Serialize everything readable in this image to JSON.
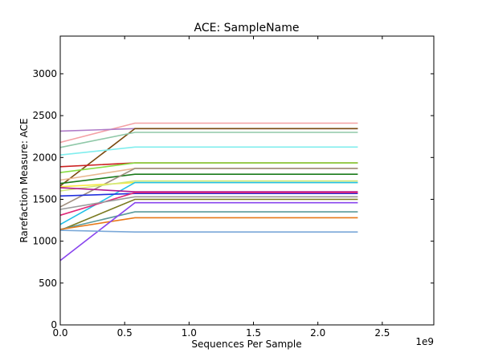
{
  "chart_data": {
    "type": "line",
    "title": "ACE: SampleName",
    "xlabel": "Sequences Per Sample",
    "ylabel": "Rarefaction Measure: ACE",
    "x_exponent_label": "1e9",
    "xlim": [
      0,
      2.9
    ],
    "ylim": [
      0,
      3450
    ],
    "x_ticks": [
      0,
      0.5,
      1.0,
      1.5,
      2.0,
      2.5
    ],
    "x_tick_labels": [
      "0.0",
      "0.5",
      "1.0",
      "1.5",
      "2.0",
      "2.5"
    ],
    "y_ticks": [
      0,
      500,
      1000,
      1500,
      2000,
      2500,
      3000
    ],
    "y_tick_labels": [
      "0",
      "500",
      "1000",
      "1500",
      "2000",
      "2500",
      "3000"
    ],
    "grid": false,
    "x": [
      0,
      0.58,
      2.31
    ],
    "series": [
      {
        "color": "#f4a0a4",
        "values": [
          2180,
          2410,
          2410
        ]
      },
      {
        "color": "#b07cc8",
        "values": [
          2315,
          2345,
          2345
        ]
      },
      {
        "color": "#7a4a10",
        "values": [
          1660,
          2345,
          2345
        ]
      },
      {
        "color": "#8fc8a8",
        "values": [
          2120,
          2300,
          2300
        ]
      },
      {
        "color": "#80eeee",
        "values": [
          2030,
          2125,
          2125
        ]
      },
      {
        "color": "#cc2020",
        "values": [
          1890,
          1935,
          1935
        ]
      },
      {
        "color": "#88dd44",
        "values": [
          1820,
          1935,
          1935
        ]
      },
      {
        "color": "#1a7a1a",
        "values": [
          1690,
          1800,
          1800
        ]
      },
      {
        "color": "#e8b890",
        "values": [
          1730,
          1870,
          1870
        ]
      },
      {
        "color": "#a09080",
        "values": [
          1410,
          1870,
          1870
        ]
      },
      {
        "color": "#f8e840",
        "values": [
          1650,
          1700,
          1700
        ]
      },
      {
        "color": "#d0e878",
        "values": [
          1600,
          1720,
          1720
        ]
      },
      {
        "color": "#22c0e8",
        "values": [
          1200,
          1700,
          1700
        ]
      },
      {
        "color": "#2030dd",
        "values": [
          1540,
          1570,
          1570
        ]
      },
      {
        "color": "#b01890",
        "values": [
          1640,
          1590,
          1590
        ]
      },
      {
        "color": "#e02878",
        "values": [
          1310,
          1580,
          1580
        ]
      },
      {
        "color": "#7a7a20",
        "values": [
          1130,
          1500,
          1500
        ]
      },
      {
        "color": "#9a9a9a",
        "values": [
          1380,
          1530,
          1530
        ]
      },
      {
        "color": "#5a9a9a",
        "values": [
          1140,
          1350,
          1350
        ]
      },
      {
        "color": "#e87818",
        "values": [
          1140,
          1280,
          1280
        ]
      },
      {
        "color": "#8844ee",
        "values": [
          770,
          1460,
          1460
        ]
      },
      {
        "color": "#7aa8d8",
        "values": [
          1130,
          1110,
          1110
        ]
      }
    ]
  }
}
